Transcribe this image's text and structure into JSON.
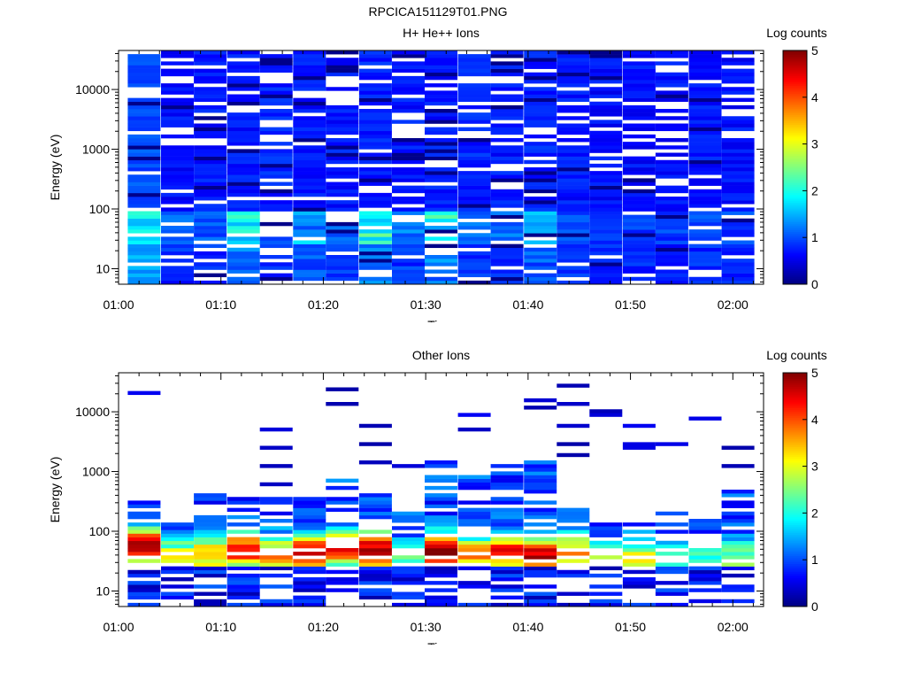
{
  "figure": {
    "title": "RPCICA151129T01.PNG"
  },
  "colormap": {
    "name": "jet",
    "range": [
      0,
      5
    ]
  },
  "chart_data": [
    {
      "type": "heatmap",
      "title": "H+ He++ Ions",
      "xlabel": "Time",
      "ylabel": "Energy (eV)",
      "colorbar_label": "Log counts",
      "colorbar_ticks": [
        "0",
        "1",
        "2",
        "3",
        "4",
        "5"
      ],
      "x_tick_labels": [
        "01:00",
        "01:10",
        "01:20",
        "01:30",
        "01:40",
        "01:50",
        "02:00"
      ],
      "x_tick_minutes": [
        0,
        10,
        20,
        30,
        40,
        50,
        60
      ],
      "xlim_minutes": [
        0,
        63
      ],
      "y_scale": "log",
      "ylim": [
        5.5,
        45000
      ],
      "y_tick_labels": [
        "10",
        "100",
        "1000",
        "10000"
      ],
      "y_tick_values": [
        10,
        100,
        1000,
        10000
      ],
      "energy_range": [
        5.5,
        45000
      ],
      "num_energy_bins": 64,
      "columns": [
        {
          "t": 2.5,
          "base": 0.8,
          "low_boost": 1.3,
          "bands": [],
          "gap": 0.15
        },
        {
          "t": 5.75,
          "base": 0.5,
          "low_boost": 0.5,
          "bands": [],
          "gap": 0.18
        },
        {
          "t": 8.95,
          "base": 0.55,
          "low_boost": 0.4,
          "bands": [],
          "gap": 0.18
        },
        {
          "t": 12.2,
          "base": 0.55,
          "low_boost": 1.4,
          "bands": [],
          "gap": 0.18
        },
        {
          "t": 15.4,
          "base": 0.6,
          "low_boost": 0.3,
          "bands": [],
          "gap": 0.2
        },
        {
          "t": 18.65,
          "base": 0.55,
          "low_boost": 0.9,
          "bands": [],
          "gap": 0.18
        },
        {
          "t": 21.85,
          "base": 0.55,
          "low_boost": 0.6,
          "bands": [],
          "gap": 0.2
        },
        {
          "t": 25.1,
          "base": 0.6,
          "low_boost": 1.6,
          "bands": [],
          "gap": 0.22
        },
        {
          "t": 28.3,
          "base": 0.55,
          "low_boost": 0.7,
          "bands": [],
          "gap": 0.2
        },
        {
          "t": 31.5,
          "base": 0.55,
          "low_boost": 1.7,
          "bands": [],
          "gap": 0.22
        },
        {
          "t": 34.75,
          "base": 0.6,
          "low_boost": 0.4,
          "bands": [],
          "gap": 0.2
        },
        {
          "t": 37.95,
          "base": 0.55,
          "low_boost": 0.5,
          "bands": [],
          "gap": 0.2
        },
        {
          "t": 41.2,
          "base": 0.6,
          "low_boost": 0.9,
          "bands": [],
          "gap": 0.2
        },
        {
          "t": 44.4,
          "base": 0.55,
          "low_boost": 0.4,
          "bands": [],
          "gap": 0.2
        },
        {
          "t": 47.6,
          "base": 0.5,
          "low_boost": 0.3,
          "bands": [],
          "gap": 0.2
        },
        {
          "t": 50.85,
          "base": 0.5,
          "low_boost": 0.3,
          "bands": [],
          "gap": 0.18
        },
        {
          "t": 54.05,
          "base": 0.5,
          "low_boost": 0.3,
          "bands": [],
          "gap": 0.18
        },
        {
          "t": 57.3,
          "base": 0.55,
          "low_boost": 0.4,
          "bands": [],
          "gap": 0.2
        },
        {
          "t": 60.5,
          "base": 0.5,
          "low_boost": 0.3,
          "bands": [],
          "gap": 0.2
        }
      ]
    },
    {
      "type": "heatmap",
      "title": "Other Ions",
      "xlabel": "Time",
      "ylabel": "Energy (eV)",
      "colorbar_label": "Log counts",
      "colorbar_ticks": [
        "0",
        "1",
        "2",
        "3",
        "4",
        "5"
      ],
      "x_tick_labels": [
        "01:00",
        "01:10",
        "01:20",
        "01:30",
        "01:40",
        "01:50",
        "02:00"
      ],
      "x_tick_minutes": [
        0,
        10,
        20,
        30,
        40,
        50,
        60
      ],
      "xlim_minutes": [
        0,
        63
      ],
      "y_scale": "log",
      "ylim": [
        5.5,
        45000
      ],
      "y_tick_labels": [
        "10",
        "100",
        "1000",
        "10000"
      ],
      "y_tick_values": [
        10,
        100,
        1000,
        10000
      ],
      "energy_range": [
        5.5,
        45000
      ],
      "num_energy_bins": 64,
      "columns": [
        {
          "t": 2.5,
          "peak_e": 55,
          "peak_v": 4.0,
          "top_e": 320,
          "sparse": [
            21000
          ],
          "gap": 0.2
        },
        {
          "t": 5.75,
          "peak_e": 35,
          "peak_v": 2.4,
          "top_e": 170,
          "sparse": [],
          "gap": 0.3
        },
        {
          "t": 8.95,
          "peak_e": 40,
          "peak_v": 2.6,
          "top_e": 420,
          "sparse": [],
          "gap": 0.25
        },
        {
          "t": 12.2,
          "peak_e": 50,
          "peak_v": 3.5,
          "top_e": 380,
          "sparse": [],
          "gap": 0.25
        },
        {
          "t": 15.4,
          "peak_e": 40,
          "peak_v": 2.6,
          "top_e": 360,
          "sparse": [
            600,
            1300,
            2500,
            5000
          ],
          "gap": 0.3
        },
        {
          "t": 18.65,
          "peak_e": 45,
          "peak_v": 3.7,
          "top_e": 360,
          "sparse": [],
          "gap": 0.2
        },
        {
          "t": 21.85,
          "peak_e": 50,
          "peak_v": 3.2,
          "top_e": 800,
          "sparse": [
            14000,
            24000
          ],
          "gap": 0.25
        },
        {
          "t": 25.1,
          "peak_e": 45,
          "peak_v": 4.2,
          "top_e": 480,
          "sparse": [
            1400,
            2900,
            6000
          ],
          "gap": 0.25
        },
        {
          "t": 28.3,
          "peak_e": 35,
          "peak_v": 1.4,
          "top_e": 220,
          "sparse": [
            1200
          ],
          "gap": 0.3
        },
        {
          "t": 31.5,
          "peak_e": 45,
          "peak_v": 4.3,
          "top_e": 1500,
          "sparse": [],
          "gap": 0.2
        },
        {
          "t": 34.75,
          "peak_e": 40,
          "peak_v": 2.8,
          "top_e": 850,
          "sparse": [
            5000,
            9000
          ],
          "gap": 0.25
        },
        {
          "t": 37.95,
          "peak_e": 45,
          "peak_v": 3.3,
          "top_e": 1400,
          "sparse": [],
          "gap": 0.2
        },
        {
          "t": 41.2,
          "peak_e": 40,
          "peak_v": 3.6,
          "top_e": 1500,
          "sparse": [
            12000,
            16000
          ],
          "gap": 0.2
        },
        {
          "t": 44.4,
          "peak_e": 45,
          "peak_v": 2.6,
          "top_e": 300,
          "sparse": [
            1800,
            2800,
            5500,
            13000,
            27000
          ],
          "gap": 0.3
        },
        {
          "t": 47.6,
          "peak_e": 35,
          "peak_v": 1.7,
          "top_e": 140,
          "sparse": [
            8500,
            11000
          ],
          "gap": 0.35
        },
        {
          "t": 50.85,
          "peak_e": 35,
          "peak_v": 2.2,
          "top_e": 150,
          "sparse": [
            2600,
            3100,
            5500
          ],
          "gap": 0.3
        },
        {
          "t": 54.05,
          "peak_e": 35,
          "peak_v": 1.2,
          "top_e": 200,
          "sparse": [
            2800
          ],
          "gap": 0.35
        },
        {
          "t": 57.3,
          "peak_e": 35,
          "peak_v": 1.0,
          "top_e": 200,
          "sparse": [
            8000
          ],
          "gap": 0.35
        },
        {
          "t": 60.5,
          "peak_e": 35,
          "peak_v": 1.5,
          "top_e": 500,
          "sparse": [
            1200,
            2500
          ],
          "gap": 0.3
        }
      ]
    }
  ]
}
